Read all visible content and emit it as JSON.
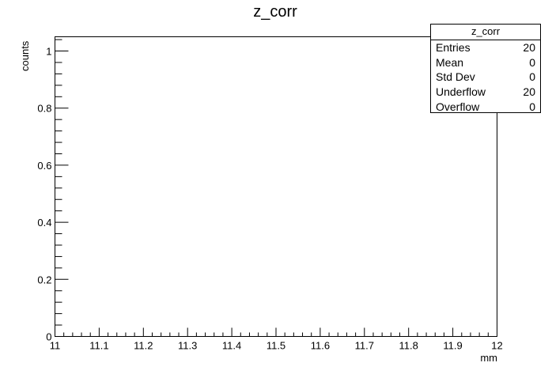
{
  "chart_data": {
    "type": "bar",
    "title": "z_corr",
    "xlabel": "mm",
    "ylabel": "counts",
    "xlim": [
      11,
      12
    ],
    "ylim": [
      0,
      1.05
    ],
    "x_tick_labels": [
      "11",
      "11.1",
      "11.2",
      "11.3",
      "11.4",
      "11.5",
      "11.6",
      "11.7",
      "11.8",
      "11.9",
      "12"
    ],
    "y_tick_labels": [
      "0",
      "0.2",
      "0.4",
      "0.6",
      "0.8",
      "1"
    ],
    "bins": [],
    "values": [],
    "grid": false,
    "legend": "none"
  },
  "stats": {
    "title": "z_corr",
    "rows": [
      {
        "label": "Entries",
        "value": "20"
      },
      {
        "label": "Mean",
        "value": "0"
      },
      {
        "label": "Std Dev",
        "value": "0"
      },
      {
        "label": "Underflow",
        "value": "20"
      },
      {
        "label": "Overflow",
        "value": "0"
      }
    ]
  },
  "colors": {
    "frame": "#000000",
    "background": "#ffffff",
    "text": "#000000"
  }
}
